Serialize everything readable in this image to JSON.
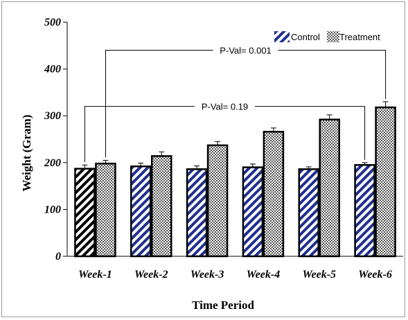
{
  "chart_data": {
    "type": "bar",
    "categories": [
      "Week-1",
      "Week-2",
      "Week-3",
      "Week-4",
      "Week-5",
      "Week-6"
    ],
    "series": [
      {
        "name": "Control",
        "values": [
          187,
          192,
          186,
          190,
          186,
          195
        ],
        "errors": [
          8,
          7,
          7,
          7,
          5,
          5
        ]
      },
      {
        "name": "Treatment",
        "values": [
          198,
          214,
          237,
          266,
          292,
          318
        ],
        "errors": [
          7,
          9,
          8,
          8,
          10,
          12
        ]
      }
    ],
    "xlabel": "Time Period",
    "ylabel": "Weight  (Gram)",
    "ylim": [
      0,
      500
    ],
    "yticks": [
      "0",
      "100",
      "200",
      "300",
      "400",
      "500"
    ],
    "legend_position": "top-right",
    "annotations": [
      {
        "label": "P-Val= 0.001",
        "from_category": "Week-1",
        "from_series": "Treatment",
        "to_category": "Week-6",
        "to_series": "Treatment",
        "level": 440
      },
      {
        "label": "P-Val= 0.19",
        "from_category": "Week-1",
        "from_series": "Control",
        "to_category": "Week-6",
        "to_series": "Control",
        "level": 320
      }
    ],
    "colors": {
      "control_stripe": "#1f2f8f",
      "week1_control_stripe": "#000000",
      "treatment_dots": "#555555",
      "axis": "#000000"
    }
  }
}
